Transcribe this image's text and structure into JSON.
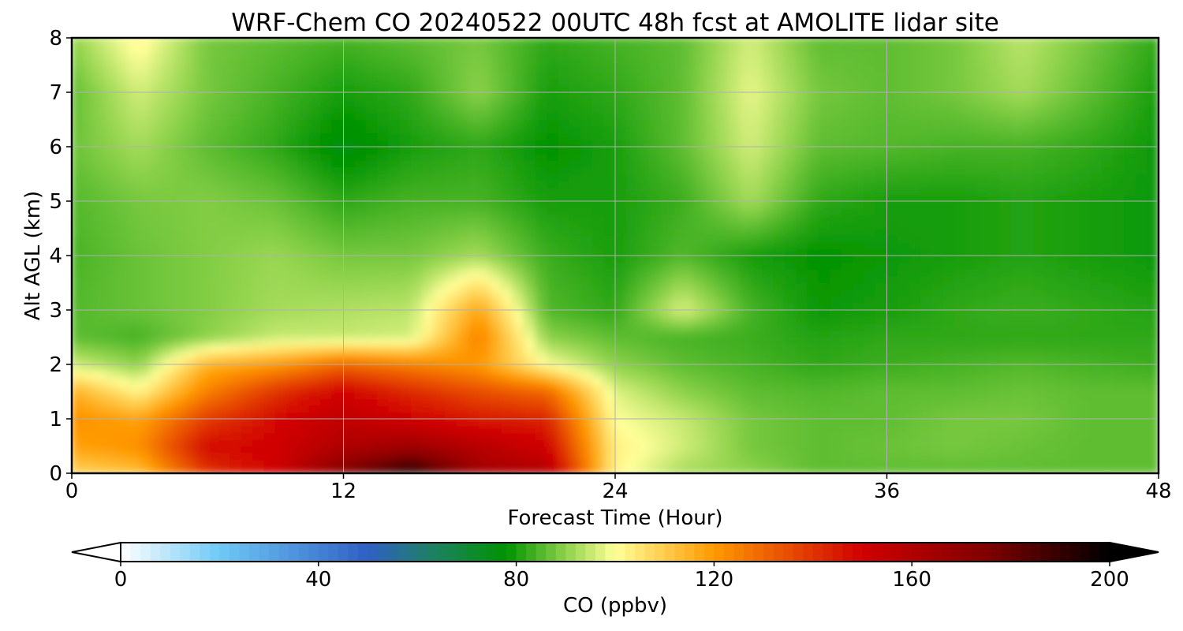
{
  "chart_data": {
    "type": "heatmap",
    "title": "WRF-Chem CO  20240522 00UTC 48h fcst at AMOLITE lidar site",
    "xlabel": "Forecast Time (Hour)",
    "ylabel": "Alt AGL (km)",
    "xlim": [
      0,
      48
    ],
    "ylim": [
      0,
      8
    ],
    "xticks": [
      0,
      12,
      24,
      36,
      48
    ],
    "yticks": [
      0,
      1,
      2,
      3,
      4,
      5,
      6,
      7,
      8
    ],
    "grid": true,
    "x": [
      0,
      3,
      6,
      9,
      12,
      15,
      18,
      21,
      24,
      27,
      30,
      33,
      36,
      39,
      42,
      45,
      48
    ],
    "y": [
      0,
      0.5,
      1,
      1.5,
      2,
      2.5,
      3,
      4,
      5,
      6,
      7,
      8
    ],
    "z": [
      [
        108,
        112,
        140,
        150,
        175,
        195,
        165,
        160,
        102,
        92,
        90,
        86,
        86,
        86,
        86,
        86,
        86
      ],
      [
        118,
        122,
        148,
        150,
        160,
        165,
        158,
        150,
        103,
        96,
        88,
        86,
        87,
        88,
        87,
        86,
        86
      ],
      [
        122,
        118,
        138,
        148,
        155,
        150,
        145,
        143,
        100,
        95,
        88,
        86,
        86,
        88,
        88,
        86,
        86
      ],
      [
        116,
        102,
        125,
        140,
        150,
        142,
        135,
        130,
        97,
        90,
        86,
        85,
        86,
        86,
        87,
        86,
        86
      ],
      [
        96,
        90,
        115,
        120,
        130,
        125,
        120,
        100,
        90,
        86,
        84,
        82,
        83,
        84,
        85,
        84,
        83
      ],
      [
        86,
        84,
        90,
        95,
        95,
        96,
        125,
        90,
        86,
        84,
        83,
        81,
        82,
        82,
        82,
        82,
        82
      ],
      [
        85,
        87,
        89,
        92,
        93,
        94,
        118,
        85,
        82,
        97,
        84,
        79,
        80,
        82,
        83,
        82,
        81
      ],
      [
        84,
        87,
        89,
        91,
        88,
        88,
        92,
        83,
        80,
        85,
        80,
        78,
        79,
        80,
        81,
        80,
        79
      ],
      [
        85,
        88,
        89,
        87,
        82,
        84,
        84,
        80,
        80,
        83,
        92,
        82,
        80,
        80,
        81,
        80,
        79
      ],
      [
        87,
        92,
        86,
        82,
        76,
        80,
        82,
        78,
        80,
        86,
        96,
        86,
        85,
        84,
        84,
        82,
        79
      ],
      [
        86,
        96,
        88,
        84,
        80,
        82,
        90,
        80,
        82,
        86,
        98,
        88,
        86,
        88,
        92,
        86,
        80
      ],
      [
        90,
        102,
        88,
        86,
        84,
        86,
        88,
        82,
        84,
        86,
        96,
        86,
        86,
        88,
        94,
        88,
        82
      ]
    ],
    "colorbar": {
      "label": "CO  (ppbv)",
      "min": 0,
      "max": 200,
      "ticks": [
        0,
        40,
        80,
        120,
        160,
        200
      ],
      "extend": "both",
      "stops": [
        {
          "v": 0,
          "c": "#ffffff"
        },
        {
          "v": 20,
          "c": "#6ec9f5"
        },
        {
          "v": 50,
          "c": "#2f5fc4"
        },
        {
          "v": 62,
          "c": "#1f7f6a"
        },
        {
          "v": 78,
          "c": "#009300"
        },
        {
          "v": 90,
          "c": "#8ed24a"
        },
        {
          "v": 100,
          "c": "#ffff99"
        },
        {
          "v": 120,
          "c": "#ff9900"
        },
        {
          "v": 150,
          "c": "#d00000"
        },
        {
          "v": 175,
          "c": "#800000"
        },
        {
          "v": 200,
          "c": "#000000"
        }
      ]
    }
  }
}
